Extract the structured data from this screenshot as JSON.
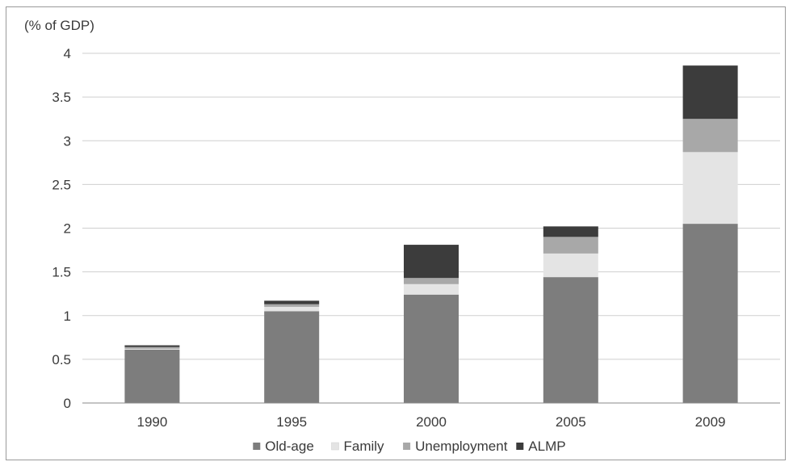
{
  "chart_data": {
    "type": "bar",
    "stacked": true,
    "title": "",
    "ylabel": "(% of GDP)",
    "xlabel": "",
    "categories": [
      "1990",
      "1995",
      "2000",
      "2005",
      "2009"
    ],
    "ylim": [
      0,
      4
    ],
    "yticks": [
      "0",
      "0.5",
      "1",
      "1.5",
      "2",
      "2.5",
      "3",
      "3.5",
      "4"
    ],
    "grid": true,
    "legend": "bottom",
    "series": [
      {
        "name": "Old-age",
        "values": [
          0.61,
          1.05,
          1.24,
          1.44,
          2.05
        ],
        "color": "#7d7d7d"
      },
      {
        "name": "Family",
        "values": [
          0.01,
          0.05,
          0.12,
          0.27,
          0.82
        ],
        "color": "#e4e4e4"
      },
      {
        "name": "Unemployment",
        "values": [
          0.02,
          0.03,
          0.07,
          0.19,
          0.38
        ],
        "color": "#a8a8a8"
      },
      {
        "name": "ALMP",
        "values": [
          0.02,
          0.04,
          0.38,
          0.12,
          0.61
        ],
        "color": "#3c3c3c"
      }
    ]
  }
}
